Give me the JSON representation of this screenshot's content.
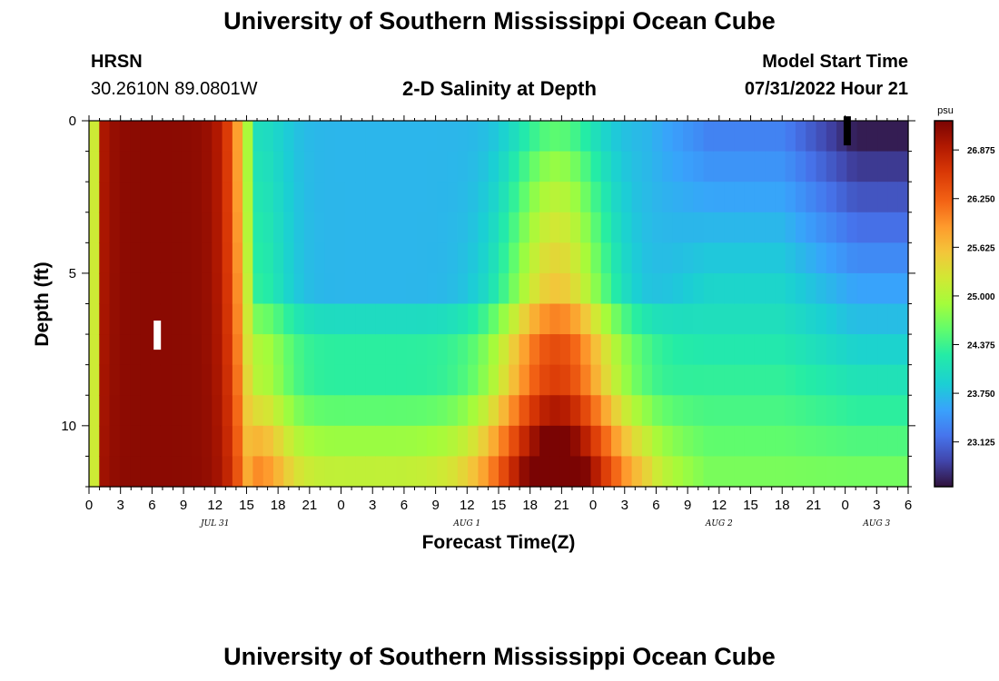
{
  "header": {
    "title": "University of Southern Mississippi Ocean Cube",
    "station": "HRSN",
    "coords": "30.2610N  89.0801W",
    "subtitle": "2-D Salinity at Depth",
    "model_start_label": "Model Start Time",
    "model_start_value": "07/31/2022 Hour 21"
  },
  "footer": {
    "title": "University of Southern Mississippi Ocean Cube"
  },
  "chart_data": {
    "type": "heatmap",
    "title": "2-D Salinity at Depth",
    "xlabel": "Forecast Time(Z)",
    "ylabel": "Depth (ft)",
    "x_range_hours": [
      0,
      78
    ],
    "y_range_ft": [
      0,
      12
    ],
    "x_ticks": [
      {
        "h": 0,
        "label": "0"
      },
      {
        "h": 3,
        "label": "3"
      },
      {
        "h": 6,
        "label": "6"
      },
      {
        "h": 9,
        "label": "9"
      },
      {
        "h": 12,
        "label": "12"
      },
      {
        "h": 15,
        "label": "15"
      },
      {
        "h": 18,
        "label": "18"
      },
      {
        "h": 21,
        "label": "21"
      },
      {
        "h": 24,
        "label": "0"
      },
      {
        "h": 27,
        "label": "3"
      },
      {
        "h": 30,
        "label": "6"
      },
      {
        "h": 33,
        "label": "9"
      },
      {
        "h": 36,
        "label": "12"
      },
      {
        "h": 39,
        "label": "15"
      },
      {
        "h": 42,
        "label": "18"
      },
      {
        "h": 45,
        "label": "21"
      },
      {
        "h": 48,
        "label": "0"
      },
      {
        "h": 51,
        "label": "3"
      },
      {
        "h": 54,
        "label": "6"
      },
      {
        "h": 57,
        "label": "9"
      },
      {
        "h": 60,
        "label": "12"
      },
      {
        "h": 63,
        "label": "15"
      },
      {
        "h": 66,
        "label": "18"
      },
      {
        "h": 69,
        "label": "21"
      },
      {
        "h": 72,
        "label": "0"
      },
      {
        "h": 75,
        "label": "3"
      },
      {
        "h": 78,
        "label": "6"
      }
    ],
    "day_labels": [
      {
        "h": 12,
        "label": "JUL 31"
      },
      {
        "h": 36,
        "label": "AUG 1"
      },
      {
        "h": 60,
        "label": "AUG 2"
      },
      {
        "h": 75,
        "label": "AUG 3"
      }
    ],
    "y_ticks": [
      {
        "ft": 0,
        "label": "0"
      },
      {
        "ft": 5,
        "label": "5"
      },
      {
        "ft": 10,
        "label": "10"
      }
    ],
    "colorbar": {
      "unit": "psu",
      "min": 22.55,
      "max": 27.25,
      "ticks": [
        "26.875",
        "26.250",
        "25.625",
        "25.000",
        "24.375",
        "23.750",
        "23.125"
      ],
      "tick_values": [
        26.875,
        26.25,
        25.625,
        25.0,
        24.375,
        23.75,
        23.125
      ]
    },
    "markers": [
      {
        "hour": 6.5,
        "depth_ft": 7.0,
        "color": "#ffffff"
      },
      {
        "hour": 72.2,
        "depth_ft": 0.3,
        "color": "#000000"
      }
    ]
  }
}
